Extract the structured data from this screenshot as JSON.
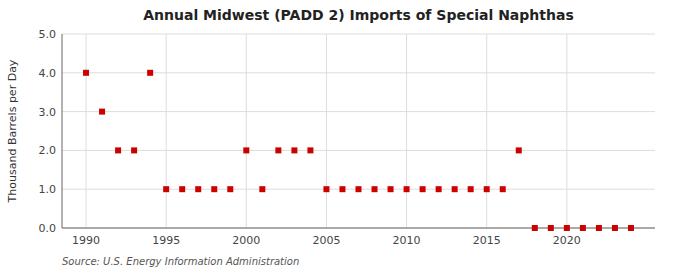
{
  "chart_data": {
    "type": "scatter",
    "title": "Annual Midwest (PADD 2) Imports of Special Naphthas",
    "ylabel": "Thousand Barrels per Day",
    "annotations": [
      "Source: U.S. Energy Information Administration"
    ],
    "x": [
      1990,
      1991,
      1992,
      1993,
      1994,
      1995,
      1996,
      1997,
      1998,
      1999,
      2000,
      2001,
      2002,
      2003,
      2004,
      2005,
      2006,
      2007,
      2008,
      2009,
      2010,
      2011,
      2012,
      2013,
      2014,
      2015,
      2016,
      2017,
      2018,
      2019,
      2020,
      2021,
      2022,
      2023,
      2024
    ],
    "values": [
      4.0,
      3.0,
      2.0,
      2.0,
      4.0,
      1.0,
      1.0,
      1.0,
      1.0,
      1.0,
      2.0,
      1.0,
      2.0,
      2.0,
      2.0,
      1.0,
      1.0,
      1.0,
      1.0,
      1.0,
      1.0,
      1.0,
      1.0,
      1.0,
      1.0,
      1.0,
      1.0,
      2.0,
      0.0,
      0.0,
      0.0,
      0.0,
      0.0,
      0.0,
      0.0
    ],
    "color": "#cc0000",
    "marker": "square",
    "xlim": [
      1988.5,
      2025.5
    ],
    "ylim": [
      0.0,
      5.0
    ],
    "xticks": [
      1990,
      1995,
      2000,
      2005,
      2010,
      2015,
      2020
    ],
    "yticks": [
      {
        "value": 0,
        "label": "0.0"
      },
      {
        "value": 1,
        "label": "1.0"
      },
      {
        "value": 2,
        "label": "2.0"
      },
      {
        "value": 3,
        "label": "3.0"
      },
      {
        "value": 4,
        "label": "4.0"
      },
      {
        "value": 5,
        "label": "5.0"
      }
    ],
    "grid": true
  }
}
